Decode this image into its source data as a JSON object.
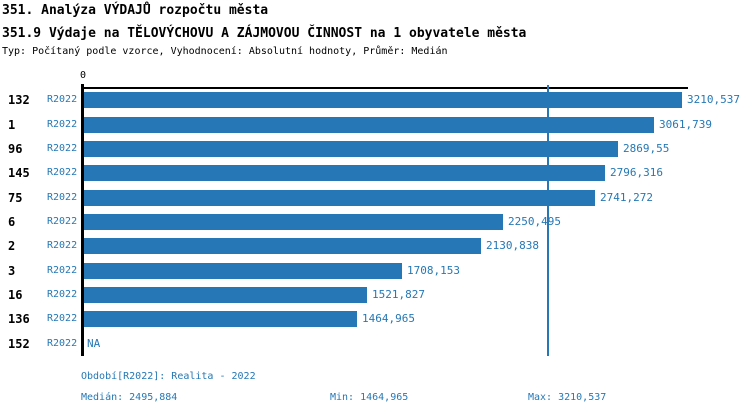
{
  "header": {
    "title": "351. Analýza VÝDAJŮ rozpočtu města",
    "subtitle": "351.9 Výdaje na TĚLOVÝCHOVU A ZÁJMOVOU ČINNOST na 1 obyvatele města",
    "meta": "Typ: Počítaný podle vzorce, Vyhodnocení: Absolutní hodnoty, Průměr: Medián"
  },
  "chart_data": {
    "type": "bar",
    "orientation": "horizontal",
    "title": "351.9 Výdaje na TĚLOVÝCHOVU A ZÁJMOVOU ČINNOST na 1 obyvatele města",
    "zero_label": "0",
    "categories": [
      "132",
      "1",
      "96",
      "145",
      "75",
      "6",
      "2",
      "3",
      "16",
      "136",
      "152"
    ],
    "rows": [
      {
        "rank": "132",
        "period": "R2022",
        "value": 3210.537,
        "label": "3210,537"
      },
      {
        "rank": "1",
        "period": "R2022",
        "value": 3061.739,
        "label": "3061,739"
      },
      {
        "rank": "96",
        "period": "R2022",
        "value": 2869.55,
        "label": "2869,55"
      },
      {
        "rank": "145",
        "period": "R2022",
        "value": 2796.316,
        "label": "2796,316"
      },
      {
        "rank": "75",
        "period": "R2022",
        "value": 2741.272,
        "label": "2741,272"
      },
      {
        "rank": "6",
        "period": "R2022",
        "value": 2250.495,
        "label": "2250,495"
      },
      {
        "rank": "2",
        "period": "R2022",
        "value": 2130.838,
        "label": "2130,838"
      },
      {
        "rank": "3",
        "period": "R2022",
        "value": 1708.153,
        "label": "1708,153"
      },
      {
        "rank": "16",
        "period": "R2022",
        "value": 1521.827,
        "label": "1521,827"
      },
      {
        "rank": "136",
        "period": "R2022",
        "value": 1464.965,
        "label": "1464,965"
      },
      {
        "rank": "152",
        "period": "R2022",
        "value": null,
        "label": "NA"
      }
    ],
    "median_value": 2495.884,
    "min_value": 1464.965,
    "max_value": 3210.537,
    "xlim": [
      0,
      3244
    ],
    "grid": false,
    "median_line": true,
    "legend_position": "none"
  },
  "footer": {
    "period_info": "Období[R2022]: Realita - 2022",
    "median": "Medián: 2495,884",
    "min": "Min: 1464,965",
    "max": "Max: 3210,537"
  },
  "colors": {
    "bar": "#2578b5",
    "accent_text": "#2578b5",
    "axis": "#000000",
    "background": "#ffffff"
  }
}
